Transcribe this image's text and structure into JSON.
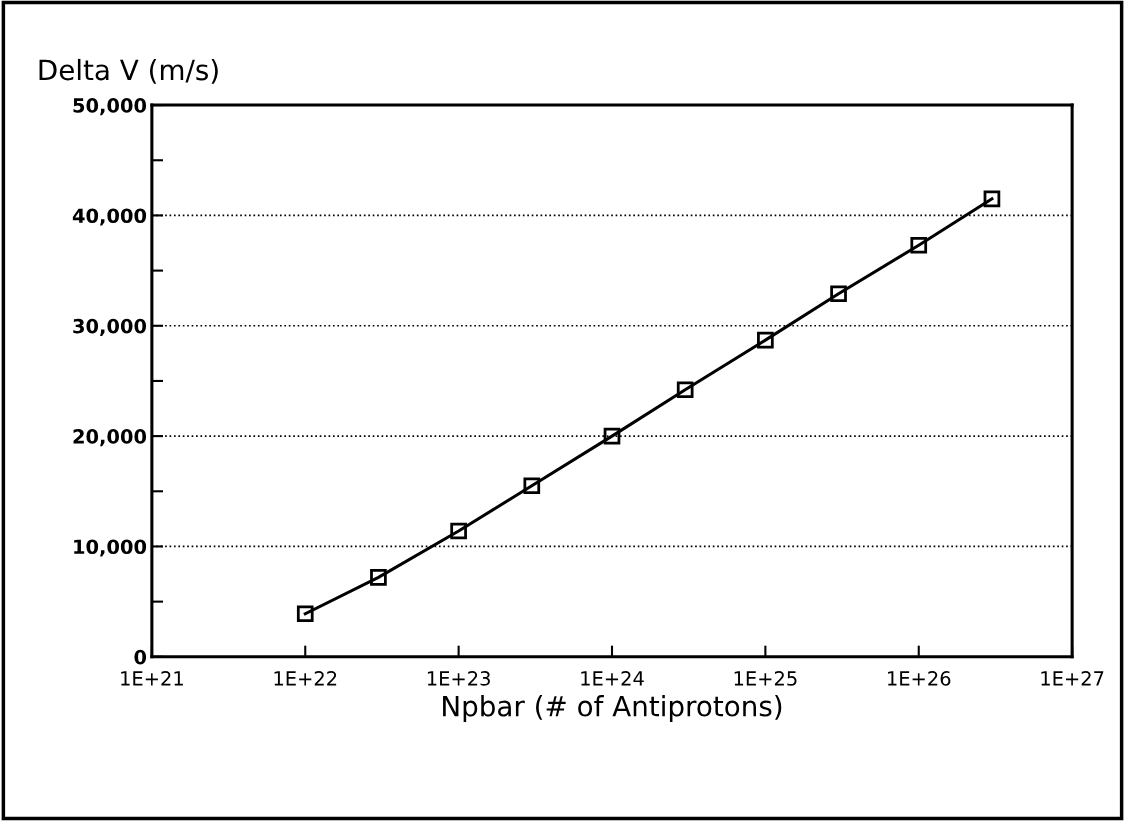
{
  "chart_data": {
    "type": "line",
    "ylabel": "Delta V (m/s)",
    "xlabel": "Npbar (# of Antiprotons)",
    "x": [
      1e+22,
      3e+22,
      1e+23,
      3e+23,
      1e+24,
      3e+24,
      1e+25,
      3e+25,
      1e+26,
      3e+26
    ],
    "series": [
      {
        "color": "#000000",
        "values": [
          3900,
          7200,
          11400,
          15500,
          20000,
          24200,
          28700,
          32900,
          37300,
          41500
        ]
      }
    ],
    "log": "x",
    "xlim": [
      1e+21,
      1e+27
    ],
    "xticks": [
      {
        "value": 1e+21,
        "label": "1E+21"
      },
      {
        "value": 1e+22,
        "label": "1E+22"
      },
      {
        "value": 1e+23,
        "label": "1E+23"
      },
      {
        "value": 1e+24,
        "label": "1E+24"
      },
      {
        "value": 1e+25,
        "label": "1E+25"
      },
      {
        "value": 1e+26,
        "label": "1E+26"
      },
      {
        "value": 1e+27,
        "label": "1E+27"
      }
    ],
    "ylim": [
      0,
      50000
    ],
    "yticks": [
      {
        "value": 0,
        "label": "0"
      },
      {
        "value": 5000,
        "label": null
      },
      {
        "value": 10000,
        "label": "10,000"
      },
      {
        "value": 15000,
        "label": null
      },
      {
        "value": 20000,
        "label": "20,000"
      },
      {
        "value": 25000,
        "label": null
      },
      {
        "value": 30000,
        "label": "30,000"
      },
      {
        "value": 35000,
        "label": null
      },
      {
        "value": 40000,
        "label": "40,000"
      },
      {
        "value": 45000,
        "label": null
      },
      {
        "value": 50000,
        "label": "50,000"
      }
    ],
    "grid": "y",
    "marker": "square",
    "line_style": "solid"
  }
}
